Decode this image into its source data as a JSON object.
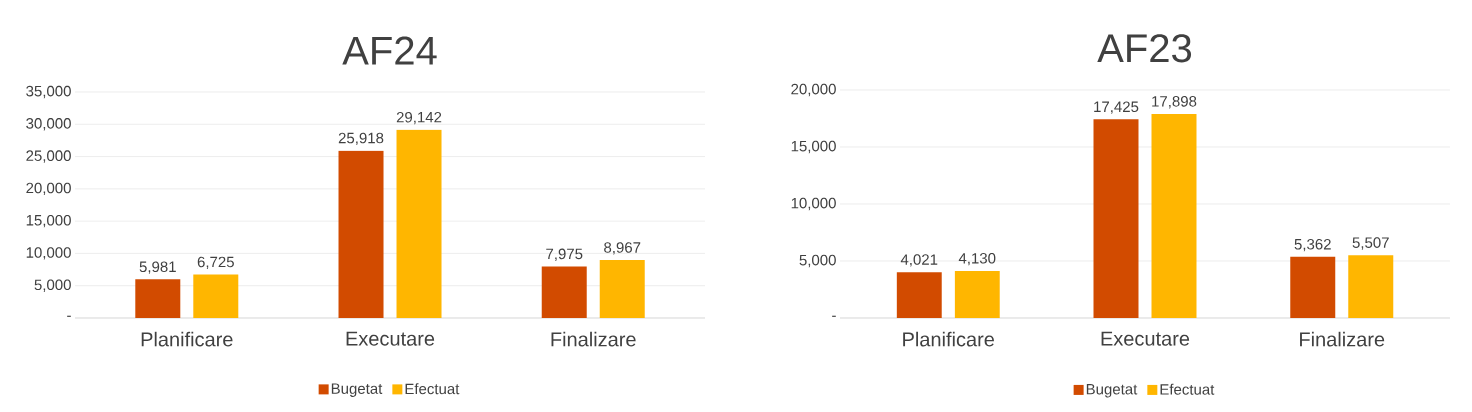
{
  "chart_data": [
    {
      "type": "bar",
      "title": "AF24",
      "categories": [
        "Planificare",
        "Executare",
        "Finalizare"
      ],
      "series": [
        {
          "name": "Bugetat",
          "color": "#d24b00",
          "values": [
            5981,
            25918,
            7975
          ],
          "value_labels": [
            "5,981",
            "25,918",
            "7,975"
          ]
        },
        {
          "name": "Efectuat",
          "color": "#ffb600",
          "values": [
            6725,
            29142,
            8967
          ],
          "value_labels": [
            "6,725",
            "29,142",
            "8,967"
          ]
        }
      ],
      "ylim": [
        0,
        35000
      ],
      "yticks": [
        {
          "value": 0,
          "label": "-"
        },
        {
          "value": 5000,
          "label": "5,000"
        },
        {
          "value": 10000,
          "label": "10,000"
        },
        {
          "value": 15000,
          "label": "15,000"
        },
        {
          "value": 20000,
          "label": "20,000"
        },
        {
          "value": 25000,
          "label": "25,000"
        },
        {
          "value": 30000,
          "label": "30,000"
        },
        {
          "value": 35000,
          "label": "35,000"
        }
      ],
      "grid": "y",
      "legend": "bottom"
    },
    {
      "type": "bar",
      "title": "AF23",
      "categories": [
        "Planificare",
        "Executare",
        "Finalizare"
      ],
      "series": [
        {
          "name": "Bugetat",
          "color": "#d24b00",
          "values": [
            4021,
            17425,
            5362
          ],
          "value_labels": [
            "4,021",
            "17,425",
            "5,362"
          ]
        },
        {
          "name": "Efectuat",
          "color": "#ffb600",
          "values": [
            4130,
            17898,
            5507
          ],
          "value_labels": [
            "4,130",
            "17,898",
            "5,507"
          ]
        }
      ],
      "ylim": [
        0,
        20000
      ],
      "yticks": [
        {
          "value": 0,
          "label": "-"
        },
        {
          "value": 5000,
          "label": "5,000"
        },
        {
          "value": 10000,
          "label": "10,000"
        },
        {
          "value": 15000,
          "label": "15,000"
        },
        {
          "value": 20000,
          "label": "20,000"
        }
      ],
      "grid": "y",
      "legend": "bottom"
    }
  ]
}
